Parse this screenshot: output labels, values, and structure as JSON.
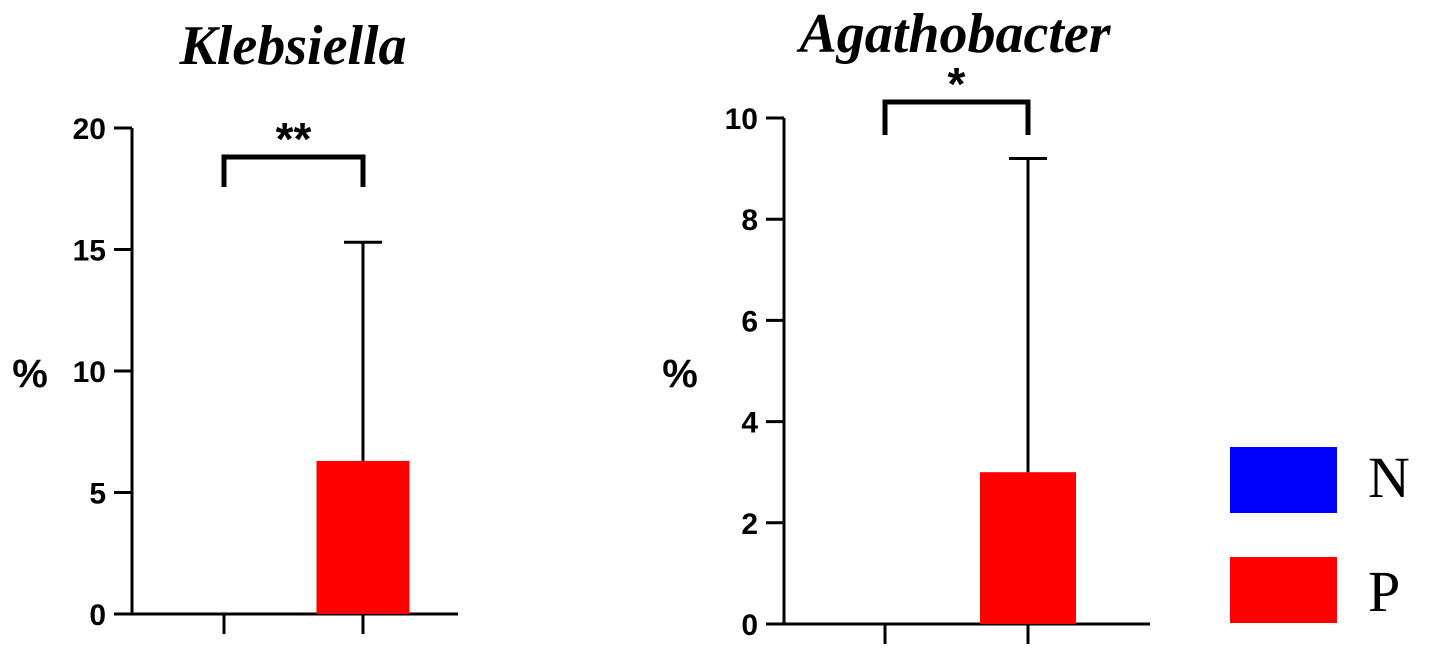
{
  "legend": {
    "items": [
      {
        "label": "N",
        "color": "#0000ff"
      },
      {
        "label": "P",
        "color": "#ff0000"
      }
    ]
  },
  "chart_data": [
    {
      "type": "bar",
      "title": "Klebsiella",
      "ylabel": "%",
      "xlabel": "",
      "categories": [
        "N",
        "P"
      ],
      "values": [
        0,
        6.3
      ],
      "error_upper": [
        0,
        15.3
      ],
      "colors": [
        "#0000ff",
        "#ff0000"
      ],
      "ylim": [
        0,
        20
      ],
      "yticks": [
        "0",
        "5",
        "10",
        "15",
        "20"
      ],
      "significance": {
        "label": "**",
        "between": [
          "N",
          "P"
        ]
      },
      "grid": false
    },
    {
      "type": "bar",
      "title": "Agathobacter",
      "ylabel": "%",
      "xlabel": "",
      "categories": [
        "N",
        "P"
      ],
      "values": [
        0,
        3.0
      ],
      "error_upper": [
        0,
        9.2
      ],
      "colors": [
        "#0000ff",
        "#ff0000"
      ],
      "ylim": [
        0,
        10
      ],
      "yticks": [
        "0",
        "2",
        "4",
        "6",
        "8",
        "10"
      ],
      "significance": {
        "label": "*",
        "between": [
          "N",
          "P"
        ]
      },
      "grid": false
    }
  ]
}
